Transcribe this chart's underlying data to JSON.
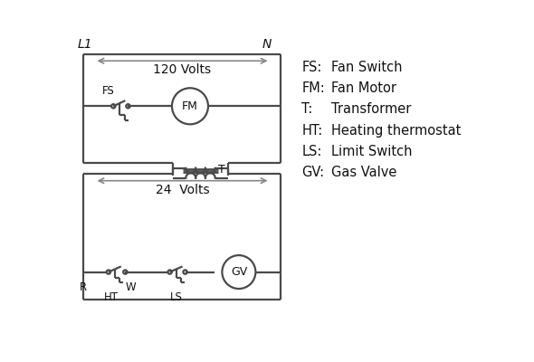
{
  "background_color": "#ffffff",
  "line_color": "#4a4a4a",
  "arrow_color": "#888888",
  "text_color": "#111111",
  "legend": {
    "FS": "Fan Switch",
    "FM": "Fan Motor",
    "T": "Transformer",
    "HT": "Heating thermostat",
    "LS": "Limit Switch",
    "GV": "Gas Valve"
  },
  "L1_label": "L1",
  "N_label": "N",
  "v120_label": "120 Volts",
  "v24_label": "24  Volts",
  "T_label": "T"
}
